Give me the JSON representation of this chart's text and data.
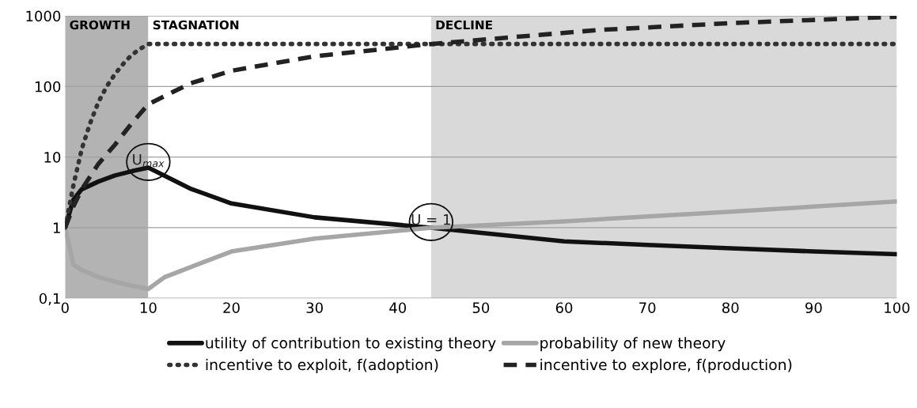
{
  "chart_data": {
    "type": "line",
    "log": "y",
    "grid": "y",
    "legend": "bottom",
    "xlim": [
      0,
      100
    ],
    "xticks": [
      0,
      10,
      20,
      30,
      40,
      50,
      60,
      70,
      80,
      90,
      100
    ],
    "ylim": [
      0.1,
      1000
    ],
    "yticks": [
      {
        "value": 0.1,
        "label": "0,1"
      },
      1,
      10,
      100,
      1000
    ],
    "bands": [
      {
        "axis": "x",
        "from": 0,
        "to": 10,
        "label": "GROWTH",
        "color": "#b3b3b3"
      },
      {
        "axis": "x",
        "from": 10,
        "to": 44,
        "label": "STAGNATION",
        "color": "#ffffff"
      },
      {
        "axis": "x",
        "from": 44,
        "to": 100,
        "label": "DECLINE",
        "color": "#d9d9d9"
      }
    ],
    "annotations": [
      {
        "text": "U$_{max}$",
        "x": 10,
        "y": 7.1
      },
      {
        "text": "U = 1",
        "x": 44,
        "y": 1
      }
    ],
    "series": [
      {
        "name": "utility of contribution to existing theory",
        "color": "#111111",
        "line_style": "solid",
        "x": [
          0,
          1,
          2,
          4,
          6,
          8,
          10,
          15,
          20,
          30,
          44,
          60,
          70,
          80,
          90,
          100
        ],
        "values": [
          1,
          2.5,
          3.5,
          4.5,
          5.5,
          6.3,
          7.1,
          3.6,
          2.2,
          1.4,
          1,
          0.64,
          0.57,
          0.51,
          0.46,
          0.42
        ]
      },
      {
        "name": "probability of new theory",
        "color": "#a6a6a6",
        "line_style": "solid",
        "x": [
          0,
          1,
          2,
          4,
          7,
          10,
          12,
          20,
          30,
          44,
          60,
          80,
          100
        ],
        "values": [
          1,
          0.3,
          0.25,
          0.2,
          0.16,
          0.135,
          0.2,
          0.46,
          0.7,
          1,
          1.23,
          1.68,
          2.35
        ]
      },
      {
        "name": "incentive to exploit, f(adoption)",
        "color": "#333333",
        "line_style": "dotted",
        "x": [
          0,
          1,
          2,
          3,
          4,
          5,
          6,
          7,
          8,
          9,
          10,
          100
        ],
        "values": [
          1,
          4,
          13,
          30,
          60,
          100,
          150,
          210,
          280,
          340,
          400,
          400
        ]
      },
      {
        "name": "incentive to explore, f(production)",
        "color": "#222222",
        "line_style": "dashed",
        "x": [
          0,
          1,
          2,
          4,
          6,
          8,
          10,
          15,
          20,
          30,
          44,
          64,
          80,
          100
        ],
        "values": [
          1,
          2,
          3.5,
          8,
          15,
          30,
          56,
          110,
          167,
          268,
          400,
          630,
          790,
          975
        ]
      }
    ]
  }
}
